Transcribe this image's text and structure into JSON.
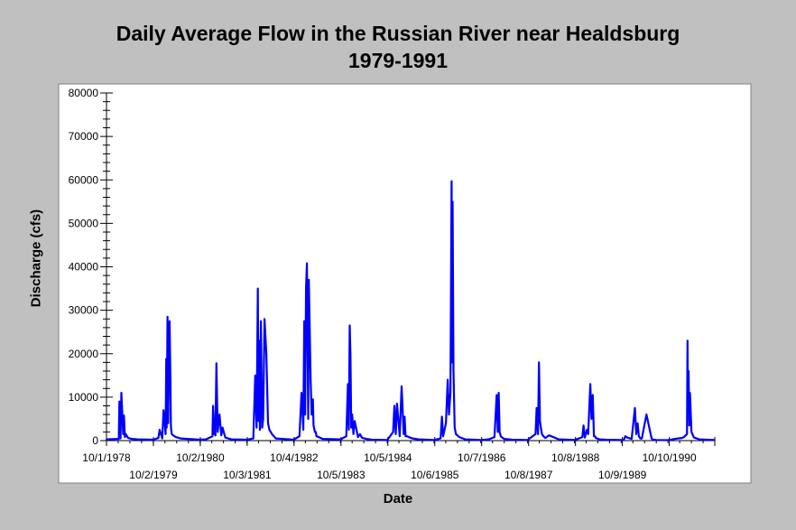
{
  "chart_data": {
    "type": "line",
    "title": [
      "Daily Average Flow in the Russian River near Healdsburg",
      "1979-1991"
    ],
    "xlabel": "Date",
    "ylabel": "Discharge (cfs)",
    "ylim": [
      0,
      80000
    ],
    "yticks": [
      0,
      10000,
      20000,
      30000,
      40000,
      50000,
      60000,
      70000,
      80000
    ],
    "xlim": [
      "1978-10-01",
      "1991-09-30"
    ],
    "xticks_upper": [
      "10/1/1978",
      "10/2/1980",
      "10/4/1982",
      "10/5/1984",
      "10/7/1986",
      "10/8/1988",
      "10/10/1990"
    ],
    "xticks_lower": [
      "10/2/1979",
      "10/3/1981",
      "10/5/1983",
      "10/6/1985",
      "10/8/1987",
      "10/9/1989"
    ],
    "xtick_dates_upper": [
      "1978-10-01",
      "1980-10-02",
      "1982-10-04",
      "1984-10-05",
      "1986-10-07",
      "1988-10-08",
      "1990-10-10"
    ],
    "xtick_dates_lower": [
      "1979-10-02",
      "1981-10-03",
      "1983-10-05",
      "1985-10-06",
      "1987-10-08",
      "1989-10-09"
    ],
    "grid": false,
    "line_color": "#0000ff",
    "series": [
      {
        "x": [
          "1978-10-01",
          "1979-01-05",
          "1979-01-10",
          "1979-01-18",
          "1979-01-25",
          "1979-02-01",
          "1979-02-08",
          "1979-02-14",
          "1979-02-22",
          "1979-03-01",
          "1979-03-10",
          "1979-03-20",
          "1979-04-15",
          "1979-06-01",
          "1979-10-01",
          "1979-11-10",
          "1979-11-20",
          "1979-12-10",
          "1979-12-20",
          "1980-01-05",
          "1980-01-10",
          "1980-01-14",
          "1980-01-20",
          "1980-01-25",
          "1980-02-05",
          "1980-02-12",
          "1980-02-15",
          "1980-02-18",
          "1980-02-22",
          "1980-03-05",
          "1980-03-25",
          "1980-05-01",
          "1980-10-01",
          "1980-11-15",
          "1981-01-05",
          "1981-01-10",
          "1981-01-20",
          "1981-01-28",
          "1981-02-05",
          "1981-02-15",
          "1981-03-01",
          "1981-03-15",
          "1981-03-25",
          "1981-04-15",
          "1981-06-01",
          "1981-10-01",
          "1981-11-20",
          "1981-12-05",
          "1981-12-15",
          "1981-12-25",
          "1981-12-31",
          "1982-01-05",
          "1982-01-10",
          "1982-01-18",
          "1982-01-28",
          "1982-02-05",
          "1982-02-15",
          "1982-03-01",
          "1982-03-15",
          "1982-03-25",
          "1982-04-05",
          "1982-04-15",
          "1982-05-15",
          "1982-10-01",
          "1982-11-15",
          "1982-12-01",
          "1982-12-15",
          "1982-12-22",
          "1982-12-29",
          "1983-01-05",
          "1983-01-12",
          "1983-01-22",
          "1983-01-27",
          "1983-02-03",
          "1983-02-10",
          "1983-02-18",
          "1983-02-28",
          "1983-03-05",
          "1983-03-15",
          "1983-03-22",
          "1983-03-28",
          "1983-04-15",
          "1983-05-15",
          "1983-10-01",
          "1983-11-15",
          "1983-11-28",
          "1983-12-05",
          "1983-12-12",
          "1983-12-18",
          "1983-12-24",
          "1983-12-31",
          "1984-01-10",
          "1984-01-20",
          "1984-02-15",
          "1984-03-01",
          "1984-03-10",
          "1984-03-20",
          "1984-04-20",
          "1984-06-01",
          "1984-10-01",
          "1984-11-15",
          "1984-11-25",
          "1984-12-05",
          "1984-12-15",
          "1985-01-05",
          "1985-01-20",
          "1985-02-05",
          "1985-02-12",
          "1985-02-20",
          "1985-03-05",
          "1985-03-25",
          "1985-04-15",
          "1985-06-01",
          "1985-10-01",
          "1985-11-20",
          "1985-12-01",
          "1985-12-10",
          "1986-01-01",
          "1986-01-15",
          "1986-01-25",
          "1986-02-05",
          "1986-02-14",
          "1986-02-18",
          "1986-02-22",
          "1986-03-01",
          "1986-03-10",
          "1986-03-20",
          "1986-04-15",
          "1986-06-01",
          "1986-10-01",
          "1986-12-01",
          "1987-01-15",
          "1987-02-01",
          "1987-02-10",
          "1987-02-17",
          "1987-02-24",
          "1987-03-05",
          "1987-03-15",
          "1987-04-01",
          "1987-06-01",
          "1987-10-01",
          "1987-12-01",
          "1987-12-10",
          "1987-12-20",
          "1987-12-28",
          "1988-01-05",
          "1988-01-12",
          "1988-01-20",
          "1988-02-01",
          "1988-02-15",
          "1988-03-15",
          "1988-06-01",
          "1988-10-01",
          "1988-12-01",
          "1988-12-10",
          "1988-12-20",
          "1989-01-05",
          "1989-01-15",
          "1989-02-01",
          "1989-02-10",
          "1989-02-20",
          "1989-03-01",
          "1989-03-10",
          "1989-03-15",
          "1989-03-20",
          "1989-04-01",
          "1989-04-15",
          "1989-06-01",
          "1989-10-01",
          "1989-10-20",
          "1989-11-01",
          "1989-11-15",
          "1989-12-20",
          "1990-01-15",
          "1990-01-25",
          "1990-02-05",
          "1990-02-15",
          "1990-02-25",
          "1990-03-10",
          "1990-04-15",
          "1990-05-25",
          "1990-06-01",
          "1990-06-10",
          "1990-07-01",
          "1990-10-01",
          "1990-12-15",
          "1991-01-15",
          "1991-02-01",
          "1991-02-25",
          "1991-03-01",
          "1991-03-04",
          "1991-03-10",
          "1991-03-15",
          "1991-03-20",
          "1991-04-01",
          "1991-04-20",
          "1991-06-01",
          "1991-09-30"
        ],
        "y": [
          300,
          400,
          9000,
          500,
          11000,
          6000,
          1500,
          5800,
          800,
          1500,
          1000,
          600,
          400,
          300,
          200,
          600,
          2500,
          500,
          7000,
          1500,
          18800,
          3000,
          28500,
          4000,
          27500,
          13000,
          4000,
          2500,
          1500,
          1200,
          800,
          500,
          200,
          300,
          1000,
          8000,
          1500,
          1200,
          17800,
          2000,
          6000,
          1200,
          3000,
          700,
          300,
          200,
          500,
          15000,
          3000,
          35000,
          4500,
          23000,
          2500,
          27500,
          3000,
          5000,
          28000,
          20000,
          4000,
          2500,
          2000,
          1500,
          500,
          200,
          1000,
          11000,
          2500,
          27500,
          6000,
          35000,
          40800,
          5000,
          37000,
          25500,
          14000,
          6000,
          9500,
          3500,
          2000,
          2000,
          1000,
          800,
          400,
          300,
          1000,
          13000,
          2500,
          26500,
          20000,
          3000,
          6000,
          1500,
          4500,
          800,
          1500,
          1000,
          600,
          400,
          200,
          150,
          2000,
          8000,
          1500,
          8500,
          1000,
          12500,
          1500,
          5500,
          1000,
          1000,
          700,
          500,
          300,
          150,
          500,
          5500,
          1000,
          4000,
          14000,
          6000,
          11000,
          59700,
          18000,
          55000,
          16000,
          3000,
          1500,
          800,
          300,
          150,
          300,
          800,
          10500,
          2000,
          11000,
          2000,
          1000,
          700,
          400,
          200,
          150,
          1500,
          7500,
          1500,
          18000,
          4500,
          3000,
          1500,
          1000,
          600,
          1200,
          300,
          150,
          800,
          3500,
          700,
          2500,
          1500,
          13000,
          5000,
          10500,
          1000,
          1000,
          600,
          600,
          400,
          300,
          200,
          150,
          200,
          1000,
          700,
          400,
          7500,
          1500,
          4000,
          1000,
          500,
          500,
          6000,
          500,
          300,
          200,
          150,
          100,
          500,
          600,
          800,
          1500,
          23000,
          8000,
          16000,
          3500,
          11000,
          2000,
          700,
          300,
          150
        ]
      }
    ]
  }
}
